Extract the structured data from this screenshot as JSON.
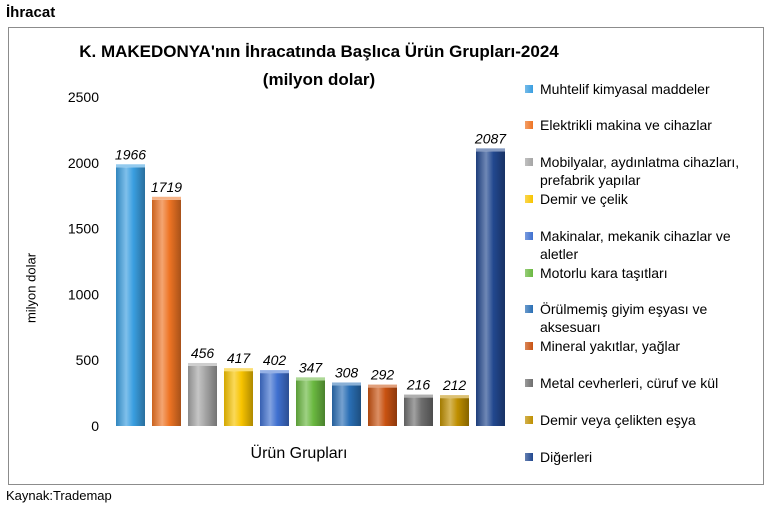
{
  "section_title": "İhracat",
  "source": "Kaynak:Trademap",
  "chart_data": {
    "type": "bar",
    "title_line1": "K. MAKEDONYA'nın İhracatında Başlıca Ürün Grupları-2024",
    "title_line2": "(milyon dolar)",
    "xlabel": "Ürün Grupları",
    "ylabel": "milyon dolar",
    "ylim": [
      0,
      2500
    ],
    "yticks": [
      0,
      500,
      1000,
      1500,
      2000,
      2500
    ],
    "grid": false,
    "legend_position": "right",
    "series": [
      {
        "name": "Muhtelif kimyasal maddeler",
        "value": 1966,
        "label": "1966",
        "color": "#3a9ee0"
      },
      {
        "name": "Elektrikli makina ve cihazlar",
        "value": 1719,
        "label": "1719",
        "color": "#ee7424"
      },
      {
        "name": "Mobilyalar, aydınlatma cihazları, prefabrik yapılar",
        "value": 456,
        "label": "456",
        "color": "#a5a5a5"
      },
      {
        "name": "Demir ve çelik",
        "value": 417,
        "label": "417",
        "color": "#f8c400"
      },
      {
        "name": "Makinalar, mekanik cihazlar ve aletler",
        "value": 402,
        "label": "402",
        "color": "#3f70d0"
      },
      {
        "name": "Motorlu kara taşıtları",
        "value": 347,
        "label": "347",
        "color": "#6ab840"
      },
      {
        "name": "Örülmemiş giyim eşyası ve aksesuarı",
        "value": 308,
        "label": "308",
        "color": "#2a6fb5"
      },
      {
        "name": "Mineral yakıtlar, yağlar",
        "value": 292,
        "label": "292",
        "color": "#c95211"
      },
      {
        "name": "Metal cevherleri, cüruf ve kül",
        "value": 216,
        "label": "216",
        "color": "#6e6e6e"
      },
      {
        "name": "Demir veya çelikten eşya",
        "value": 212,
        "label": "212",
        "color": "#bf8f00"
      },
      {
        "name": "Diğerleri",
        "value": 2087,
        "label": "2087",
        "color": "#22488f"
      }
    ]
  }
}
